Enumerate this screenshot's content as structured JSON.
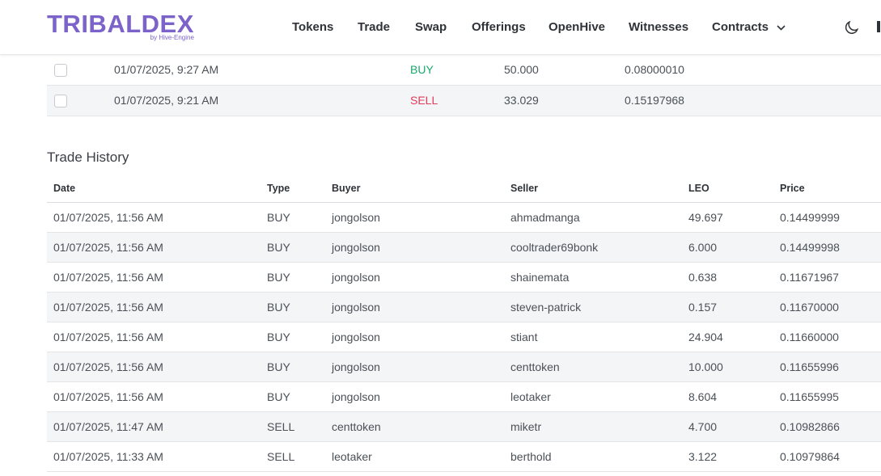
{
  "header": {
    "logo": "TRIBALDEX",
    "logo_sub": "by Hive-Engine",
    "nav": [
      "Tokens",
      "Trade",
      "Swap",
      "Offerings",
      "OpenHive",
      "Witnesses",
      "Contracts"
    ]
  },
  "orders": {
    "rows": [
      {
        "date": "01/07/2025, 9:27 AM",
        "type": "BUY",
        "quantity": "50.000",
        "price": "0.08000010"
      },
      {
        "date": "01/07/2025, 9:21 AM",
        "type": "SELL",
        "quantity": "33.029",
        "price": "0.15197968"
      }
    ]
  },
  "trade_history": {
    "title": "Trade History",
    "columns": [
      "Date",
      "Type",
      "Buyer",
      "Seller",
      "LEO",
      "Price"
    ],
    "rows": [
      {
        "date": "01/07/2025, 11:56 AM",
        "type": "BUY",
        "buyer": "jongolson",
        "seller": "ahmadmanga",
        "leo": "49.697",
        "price": "0.14499999"
      },
      {
        "date": "01/07/2025, 11:56 AM",
        "type": "BUY",
        "buyer": "jongolson",
        "seller": "cooltrader69bonk",
        "leo": "6.000",
        "price": "0.14499998"
      },
      {
        "date": "01/07/2025, 11:56 AM",
        "type": "BUY",
        "buyer": "jongolson",
        "seller": "shainemata",
        "leo": "0.638",
        "price": "0.11671967"
      },
      {
        "date": "01/07/2025, 11:56 AM",
        "type": "BUY",
        "buyer": "jongolson",
        "seller": "steven-patrick",
        "leo": "0.157",
        "price": "0.11670000"
      },
      {
        "date": "01/07/2025, 11:56 AM",
        "type": "BUY",
        "buyer": "jongolson",
        "seller": "stiant",
        "leo": "24.904",
        "price": "0.11660000"
      },
      {
        "date": "01/07/2025, 11:56 AM",
        "type": "BUY",
        "buyer": "jongolson",
        "seller": "centtoken",
        "leo": "10.000",
        "price": "0.11655996"
      },
      {
        "date": "01/07/2025, 11:56 AM",
        "type": "BUY",
        "buyer": "jongolson",
        "seller": "leotaker",
        "leo": "8.604",
        "price": "0.11655995"
      },
      {
        "date": "01/07/2025, 11:47 AM",
        "type": "SELL",
        "buyer": "centtoken",
        "seller": "miketr",
        "leo": "4.700",
        "price": "0.10982866"
      },
      {
        "date": "01/07/2025, 11:33 AM",
        "type": "SELL",
        "buyer": "leotaker",
        "seller": "berthold",
        "leo": "3.122",
        "price": "0.10979864"
      }
    ]
  },
  "colors": {
    "buy": "#1aa86b",
    "sell": "#e23b5a",
    "brand": "#7b63c9"
  }
}
